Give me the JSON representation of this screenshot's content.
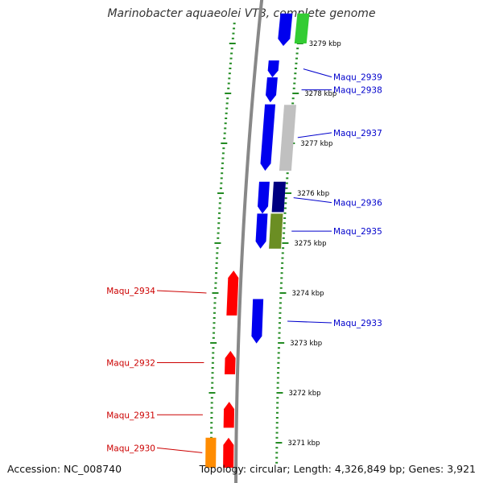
{
  "title": "Marinobacter aquaeolei VT8, complete genome",
  "footer": {
    "accession": "Accession: NC_008740",
    "summary": "Topology: circular; Length: 4,326,849 bp; Genes: 3,921"
  },
  "colors": {
    "backbone": "#888888",
    "ticks": "#228B22",
    "forward_label": "#0000cc",
    "reverse_label": "#cc0000"
  },
  "scale_labels": [
    {
      "kbp": 3279,
      "text": "3279 kbp"
    },
    {
      "kbp": 3278,
      "text": "3278 kbp"
    },
    {
      "kbp": 3277,
      "text": "3277 kbp"
    },
    {
      "kbp": 3276,
      "text": "3276 kbp"
    },
    {
      "kbp": 3275,
      "text": "3275 kbp"
    },
    {
      "kbp": 3274,
      "text": "3274 kbp"
    },
    {
      "kbp": 3273,
      "text": "3273 kbp"
    },
    {
      "kbp": 3272,
      "text": "3272 kbp"
    },
    {
      "kbp": 3271,
      "text": "3271 kbp"
    }
  ],
  "genes": [
    {
      "name": "Maqu_2939",
      "start": 3278.66,
      "end": 3278.32,
      "strand": "forward",
      "color": "#0000ee"
    },
    {
      "name": "Maqu_2938",
      "start": 3278.32,
      "end": 3277.82,
      "strand": "forward",
      "color": "#0000ee"
    },
    {
      "name": "Maqu_2937",
      "start": 3277.78,
      "end": 3276.45,
      "strand": "forward",
      "color": "#0000ee"
    },
    {
      "name": "Maqu_2936",
      "start": 3276.23,
      "end": 3275.59,
      "strand": "forward",
      "color": "#0000ee"
    },
    {
      "name": "Maqu_2935",
      "start": 3275.59,
      "end": 3274.89,
      "strand": "forward",
      "color": "#0000ee"
    },
    {
      "name": "Maqu_2934",
      "start": 3274.45,
      "end": 3273.55,
      "strand": "reverse",
      "color": "#ff0000"
    },
    {
      "name": "Maqu_2933",
      "start": 3273.88,
      "end": 3272.99,
      "strand": "forward",
      "color": "#0000ee"
    },
    {
      "name": "Maqu_2932",
      "start": 3272.84,
      "end": 3272.37,
      "strand": "reverse",
      "color": "#ff0000"
    },
    {
      "name": "Maqu_2931",
      "start": 3271.82,
      "end": 3271.3,
      "strand": "reverse",
      "color": "#ff0000"
    },
    {
      "name": "Maqu_2930",
      "start": 3271.1,
      "end": 3270.5,
      "strand": "reverse",
      "color": "#ff0000"
    }
  ],
  "features": [
    {
      "kind": "green",
      "start": 3279.6,
      "end": 3279.0,
      "color": "#33cc33"
    },
    {
      "kind": "blue",
      "start": 3279.6,
      "end": 3278.95,
      "color": "#0000ee"
    },
    {
      "kind": "grey",
      "start": 3277.77,
      "end": 3276.45,
      "color": "#c0c0c0"
    },
    {
      "kind": "navy",
      "start": 3276.23,
      "end": 3275.62,
      "color": "#000080"
    },
    {
      "kind": "olive",
      "start": 3275.59,
      "end": 3274.89,
      "color": "#6b8e23"
    },
    {
      "kind": "orange",
      "start": 3271.1,
      "end": 3270.5,
      "color": "#ff8c00"
    }
  ]
}
